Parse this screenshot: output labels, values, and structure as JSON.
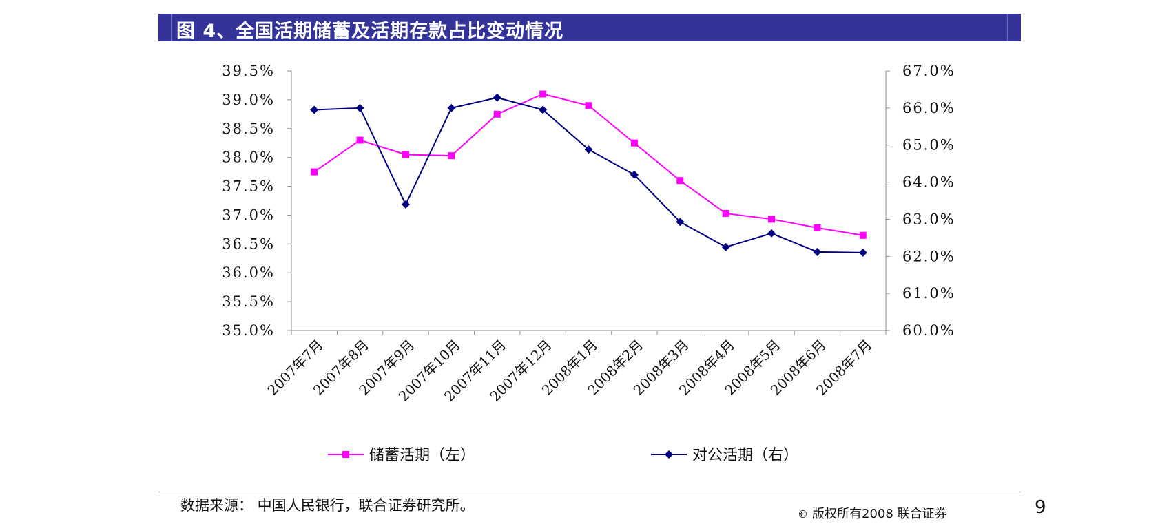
{
  "header": {
    "title": "图 4、全国活期储蓄及活期存款占比变动情况"
  },
  "chart_data": {
    "type": "line",
    "categories": [
      "2007年7月",
      "2007年8月",
      "2007年9月",
      "2007年10月",
      "2007年11月",
      "2007年12月",
      "2008年1月",
      "2008年2月",
      "2008年3月",
      "2008年4月",
      "2008年5月",
      "2008年6月",
      "2008年7月"
    ],
    "series": [
      {
        "name": "储蓄活期（左）",
        "axis": "left",
        "color": "#ff00ff",
        "marker": "square",
        "values": [
          37.75,
          38.3,
          38.05,
          38.03,
          38.75,
          39.1,
          38.9,
          38.25,
          37.6,
          37.03,
          36.93,
          36.78,
          36.65
        ]
      },
      {
        "name": "对公活期（右）",
        "axis": "right",
        "color": "#000080",
        "marker": "diamond",
        "values": [
          65.95,
          66.0,
          63.4,
          66.0,
          66.28,
          65.95,
          64.88,
          64.2,
          62.93,
          62.25,
          62.62,
          62.12,
          62.1
        ]
      }
    ],
    "y_left": {
      "ylim": [
        35.0,
        39.5
      ],
      "ticks": [
        "35.0%",
        "35.5%",
        "36.0%",
        "36.5%",
        "37.0%",
        "37.5%",
        "38.0%",
        "38.5%",
        "39.0%",
        "39.5%"
      ]
    },
    "y_right": {
      "ylim": [
        60.0,
        67.0
      ],
      "ticks": [
        "60.0%",
        "61.0%",
        "62.0%",
        "63.0%",
        "64.0%",
        "65.0%",
        "66.0%",
        "67.0%"
      ]
    },
    "grid": false,
    "legend_position": "bottom"
  },
  "footer": {
    "source": "数据来源： 中国人民银行，联合证券研究所。",
    "copyright_symbol": "©",
    "copyright": "版权所有2008 联合证券",
    "page_number": "9"
  }
}
